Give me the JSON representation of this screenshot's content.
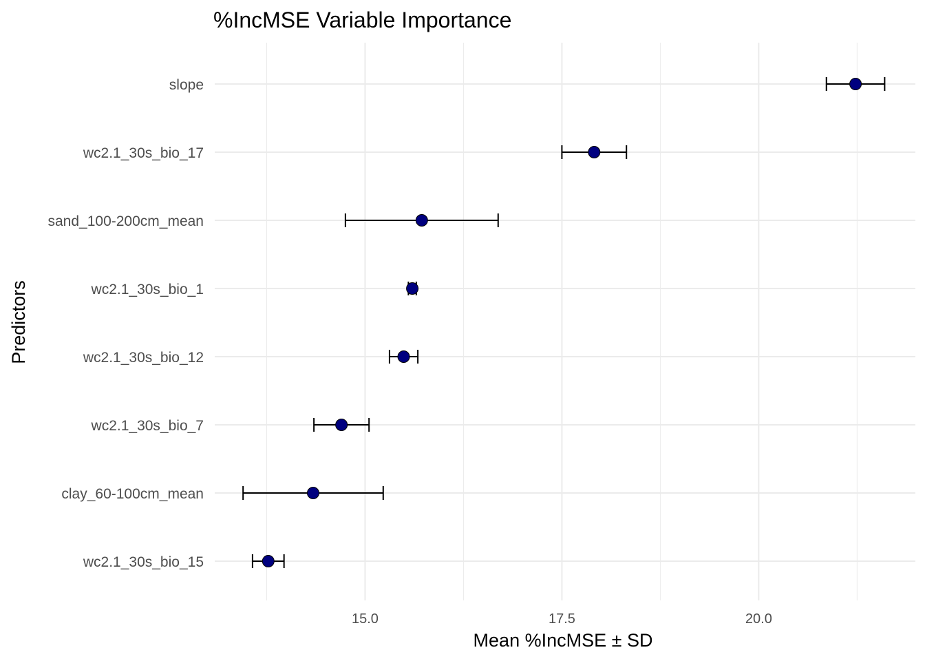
{
  "chart_data": {
    "type": "scatter",
    "title": "%IncMSE Variable Importance",
    "xlabel": "Mean %IncMSE ± SD",
    "ylabel": "Predictors",
    "xlim": [
      13.09,
      21.99
    ],
    "x_ticks": [
      15.0,
      17.5,
      20.0
    ],
    "x_tick_labels": [
      "15.0",
      "17.5",
      "20.0"
    ],
    "grid": true,
    "error_bars": "± SD",
    "point_color": "#00007f",
    "series": [
      {
        "points": [
          {
            "label": "slope",
            "mean": 21.23,
            "sd": 0.37
          },
          {
            "label": "wc2.1_30s_bio_17",
            "mean": 17.91,
            "sd": 0.41
          },
          {
            "label": "sand_100-200cm_mean",
            "mean": 15.72,
            "sd": 0.97
          },
          {
            "label": "wc2.1_30s_bio_1",
            "mean": 15.6,
            "sd": 0.05
          },
          {
            "label": "wc2.1_30s_bio_12",
            "mean": 15.49,
            "sd": 0.18
          },
          {
            "label": "wc2.1_30s_bio_7",
            "mean": 14.7,
            "sd": 0.35
          },
          {
            "label": "clay_60-100cm_mean",
            "mean": 14.34,
            "sd": 0.89
          },
          {
            "label": "wc2.1_30s_bio_15",
            "mean": 13.77,
            "sd": 0.2
          }
        ]
      }
    ]
  }
}
